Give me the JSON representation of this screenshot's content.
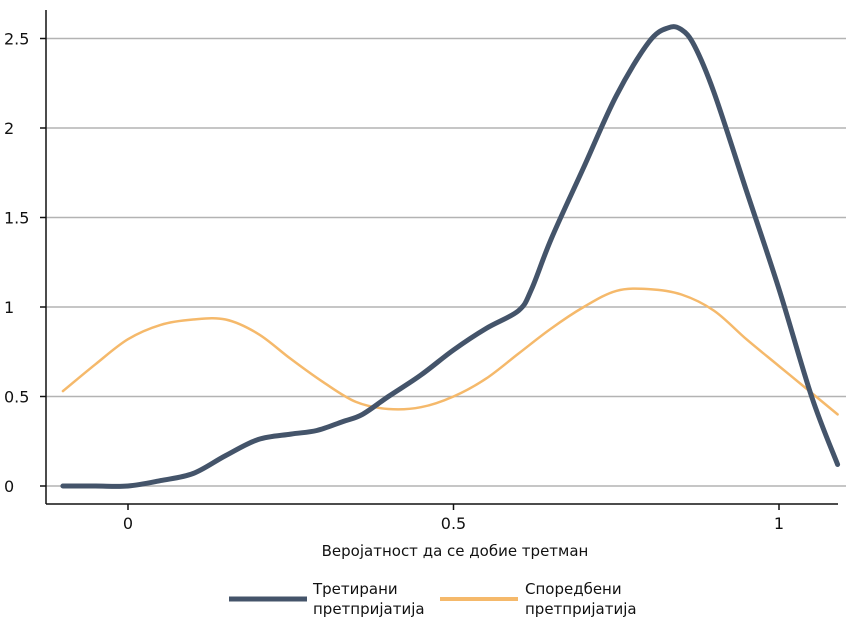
{
  "chart_data": {
    "type": "line",
    "xlabel": "Веројатност да се добие третман",
    "ylabel": "",
    "xlim": [
      -0.1,
      1.09
    ],
    "ylim": [
      -0.1,
      2.68
    ],
    "x_ticks": [
      0,
      0.5,
      1
    ],
    "x_tick_labels": [
      "0",
      "0.5",
      "1"
    ],
    "y_ticks": [
      0,
      0.5,
      1,
      1.5,
      2,
      2.5
    ],
    "y_tick_labels": [
      "0",
      "0.5",
      "1",
      "1.5",
      "2",
      "2.5"
    ],
    "grid": "horizontal",
    "legend_position": "bottom",
    "series": [
      {
        "name": "Третирани претпријатија",
        "legend_lines": [
          "Третирани",
          "претпријатија"
        ],
        "color": "#44546a",
        "x": [
          -0.1,
          -0.05,
          0,
          0.05,
          0.1,
          0.15,
          0.2,
          0.25,
          0.29,
          0.33,
          0.36,
          0.4,
          0.45,
          0.5,
          0.55,
          0.6,
          0.62,
          0.65,
          0.7,
          0.75,
          0.8,
          0.83,
          0.85,
          0.87,
          0.9,
          0.95,
          1.0,
          1.05,
          1.09
        ],
        "y": [
          0.0,
          0.0,
          0.0,
          0.03,
          0.07,
          0.17,
          0.26,
          0.29,
          0.31,
          0.36,
          0.4,
          0.5,
          0.62,
          0.76,
          0.88,
          0.98,
          1.1,
          1.38,
          1.78,
          2.18,
          2.48,
          2.56,
          2.55,
          2.46,
          2.2,
          1.65,
          1.1,
          0.5,
          0.12
        ]
      },
      {
        "name": "Споредбени претпријатија",
        "legend_lines": [
          "Споредбени",
          "претпријатија"
        ],
        "color": "#f5b96b",
        "x": [
          -0.1,
          -0.05,
          0,
          0.05,
          0.1,
          0.15,
          0.2,
          0.25,
          0.3,
          0.35,
          0.4,
          0.45,
          0.5,
          0.55,
          0.6,
          0.65,
          0.7,
          0.75,
          0.8,
          0.85,
          0.9,
          0.95,
          1.0,
          1.05,
          1.09
        ],
        "y": [
          0.53,
          0.68,
          0.82,
          0.9,
          0.93,
          0.93,
          0.85,
          0.71,
          0.58,
          0.47,
          0.43,
          0.44,
          0.5,
          0.6,
          0.74,
          0.88,
          1.0,
          1.09,
          1.1,
          1.07,
          0.98,
          0.82,
          0.67,
          0.52,
          0.4
        ]
      }
    ]
  }
}
